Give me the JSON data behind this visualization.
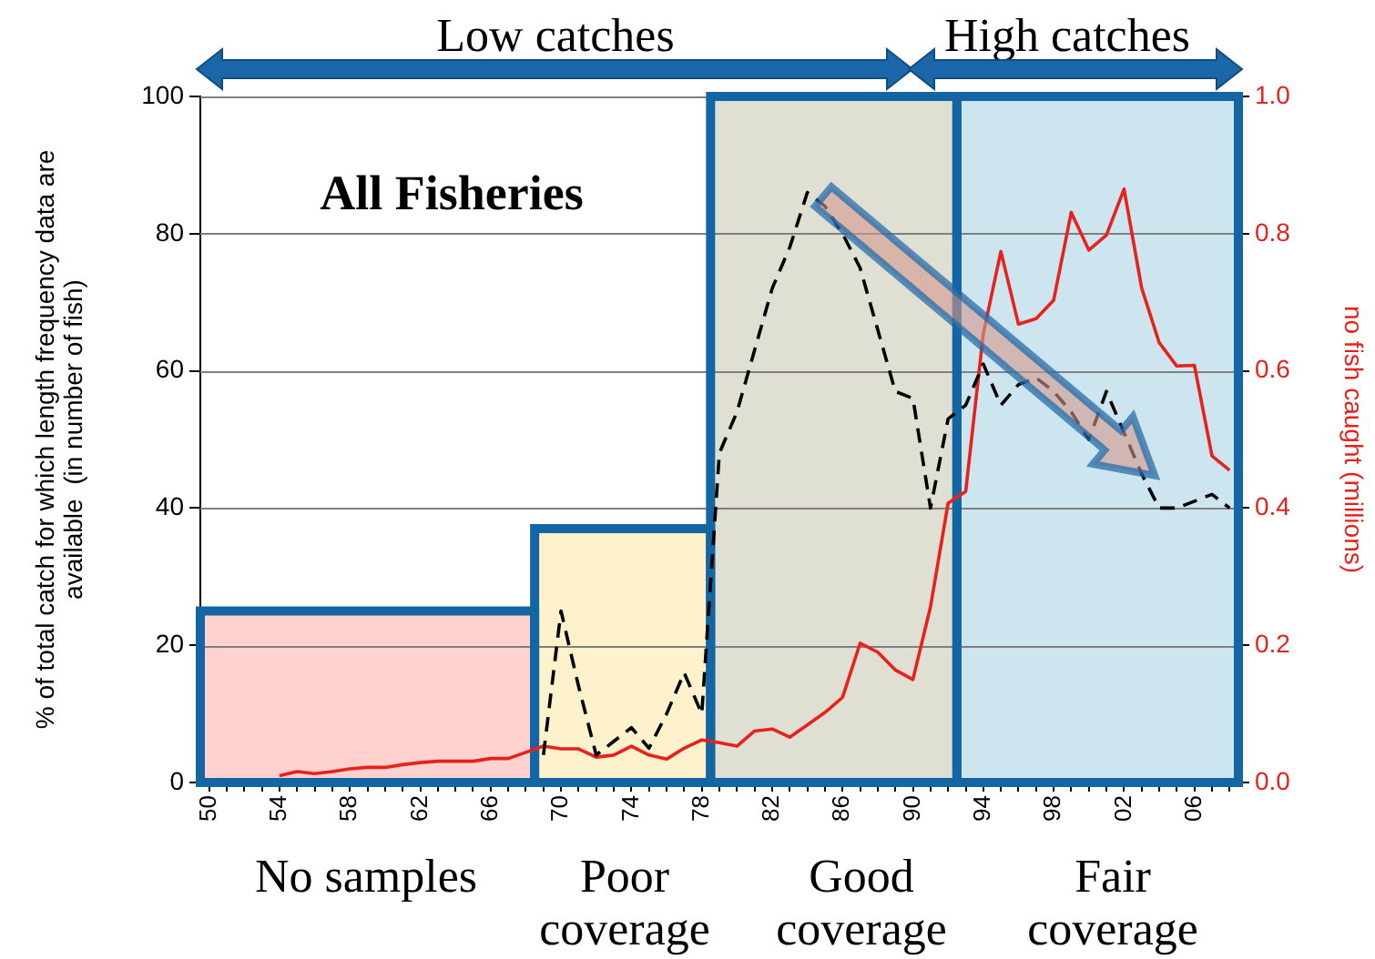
{
  "chart_data": {
    "type": "line",
    "title": "All Fisheries",
    "ylabel": "% of total catch for which length frequency data are available  (in number of fish)",
    "y2label": "no fish caught (millions)",
    "annotations": [
      "Low catches",
      "High catches",
      "No samples",
      "Poor coverage",
      "Good coverage",
      "Fair coverage"
    ],
    "x": [
      1950,
      1951,
      1952,
      1953,
      1954,
      1955,
      1956,
      1957,
      1958,
      1959,
      1960,
      1961,
      1962,
      1963,
      1964,
      1965,
      1966,
      1967,
      1968,
      1969,
      1970,
      1971,
      1972,
      1973,
      1974,
      1975,
      1976,
      1977,
      1978,
      1979,
      1980,
      1981,
      1982,
      1983,
      1984,
      1985,
      1986,
      1987,
      1988,
      1989,
      1990,
      1991,
      1992,
      1993,
      1994,
      1995,
      1996,
      1997,
      1998,
      1999,
      2000,
      2001,
      2002,
      2003,
      2004,
      2005,
      2006,
      2007,
      2008
    ],
    "series": [
      {
        "type": "histogram",
        "color": "#1465a3",
        "bins": [
          1949.5,
          1968.5,
          1978.5,
          1992.5,
          2008.5
        ],
        "values": [
          25,
          37,
          100,
          100
        ],
        "colors": [
          "#ffd2cf",
          "#fdf2cb",
          "#dfe0d3",
          "#cde5ef"
        ]
      },
      {
        "type": "line",
        "color": "#000000",
        "line_style": "dashed",
        "values": [
          null,
          null,
          null,
          null,
          null,
          null,
          null,
          null,
          null,
          null,
          null,
          null,
          null,
          null,
          null,
          null,
          null,
          null,
          null,
          4,
          25,
          14,
          4,
          6,
          8,
          5,
          10,
          16,
          10,
          48,
          54,
          63,
          72,
          78,
          86,
          84,
          80,
          75,
          66,
          57,
          56,
          40,
          53,
          55,
          61,
          55,
          58,
          59,
          57,
          54,
          50,
          57,
          51,
          45,
          40,
          40,
          41,
          42,
          40
        ]
      },
      {
        "type": "line",
        "color": "#e8211c",
        "axis": "y2",
        "line_style": "solid",
        "values": [
          null,
          null,
          null,
          null,
          0.01,
          0.016,
          0.013,
          0.016,
          0.02,
          0.022,
          0.022,
          0.026,
          0.029,
          0.031,
          0.031,
          0.031,
          0.035,
          0.035,
          0.044,
          0.053,
          0.049,
          0.049,
          0.037,
          0.04,
          0.053,
          0.04,
          0.034,
          0.05,
          0.062,
          0.058,
          0.053,
          0.075,
          0.078,
          0.066,
          0.084,
          0.102,
          0.124,
          0.203,
          0.19,
          0.164,
          0.15,
          0.256,
          0.407,
          0.424,
          0.654,
          0.774,
          0.668,
          0.676,
          0.703,
          0.831,
          0.776,
          0.798,
          0.865,
          0.721,
          0.641,
          0.607,
          0.608,
          0.476,
          0.455
        ]
      }
    ],
    "xlim": [
      1949.5,
      2008.5
    ],
    "xticks": [
      {
        "value": 1950,
        "label": "50"
      },
      {
        "value": 1951,
        "label": null
      },
      {
        "value": 1952,
        "label": null
      },
      {
        "value": 1953,
        "label": null
      },
      {
        "value": 1954,
        "label": "54"
      },
      {
        "value": 1955,
        "label": null
      },
      {
        "value": 1956,
        "label": null
      },
      {
        "value": 1957,
        "label": null
      },
      {
        "value": 1958,
        "label": "58"
      },
      {
        "value": 1959,
        "label": null
      },
      {
        "value": 1960,
        "label": null
      },
      {
        "value": 1961,
        "label": null
      },
      {
        "value": 1962,
        "label": "62"
      },
      {
        "value": 1963,
        "label": null
      },
      {
        "value": 1964,
        "label": null
      },
      {
        "value": 1965,
        "label": null
      },
      {
        "value": 1966,
        "label": "66"
      },
      {
        "value": 1967,
        "label": null
      },
      {
        "value": 1968,
        "label": null
      },
      {
        "value": 1969,
        "label": null
      },
      {
        "value": 1970,
        "label": "70"
      },
      {
        "value": 1971,
        "label": null
      },
      {
        "value": 1972,
        "label": null
      },
      {
        "value": 1973,
        "label": null
      },
      {
        "value": 1974,
        "label": "74"
      },
      {
        "value": 1975,
        "label": null
      },
      {
        "value": 1976,
        "label": null
      },
      {
        "value": 1977,
        "label": null
      },
      {
        "value": 1978,
        "label": "78"
      },
      {
        "value": 1979,
        "label": null
      },
      {
        "value": 1980,
        "label": null
      },
      {
        "value": 1981,
        "label": null
      },
      {
        "value": 1982,
        "label": "82"
      },
      {
        "value": 1983,
        "label": null
      },
      {
        "value": 1984,
        "label": null
      },
      {
        "value": 1985,
        "label": null
      },
      {
        "value": 1986,
        "label": "86"
      },
      {
        "value": 1987,
        "label": null
      },
      {
        "value": 1988,
        "label": null
      },
      {
        "value": 1989,
        "label": null
      },
      {
        "value": 1990,
        "label": "90"
      },
      {
        "value": 1991,
        "label": null
      },
      {
        "value": 1992,
        "label": null
      },
      {
        "value": 1993,
        "label": null
      },
      {
        "value": 1994,
        "label": "94"
      },
      {
        "value": 1995,
        "label": null
      },
      {
        "value": 1996,
        "label": null
      },
      {
        "value": 1997,
        "label": null
      },
      {
        "value": 1998,
        "label": "98"
      },
      {
        "value": 1999,
        "label": null
      },
      {
        "value": 2000,
        "label": null
      },
      {
        "value": 2001,
        "label": null
      },
      {
        "value": 2002,
        "label": "02"
      },
      {
        "value": 2003,
        "label": null
      },
      {
        "value": 2004,
        "label": null
      },
      {
        "value": 2005,
        "label": null
      },
      {
        "value": 2006,
        "label": "06"
      },
      {
        "value": 2007,
        "label": null
      },
      {
        "value": 2008,
        "label": null
      }
    ],
    "ylim": [
      0,
      100
    ],
    "yticks": [
      0,
      20,
      40,
      60,
      80,
      100
    ],
    "y2lim": [
      0,
      1
    ],
    "y2ticks": [
      {
        "value": 0,
        "label": "0.0"
      },
      0.2,
      0.4,
      0.6,
      0.8,
      {
        "value": 1,
        "label": "1.0"
      }
    ],
    "grid": "y",
    "marker": "none",
    "legend": false
  }
}
